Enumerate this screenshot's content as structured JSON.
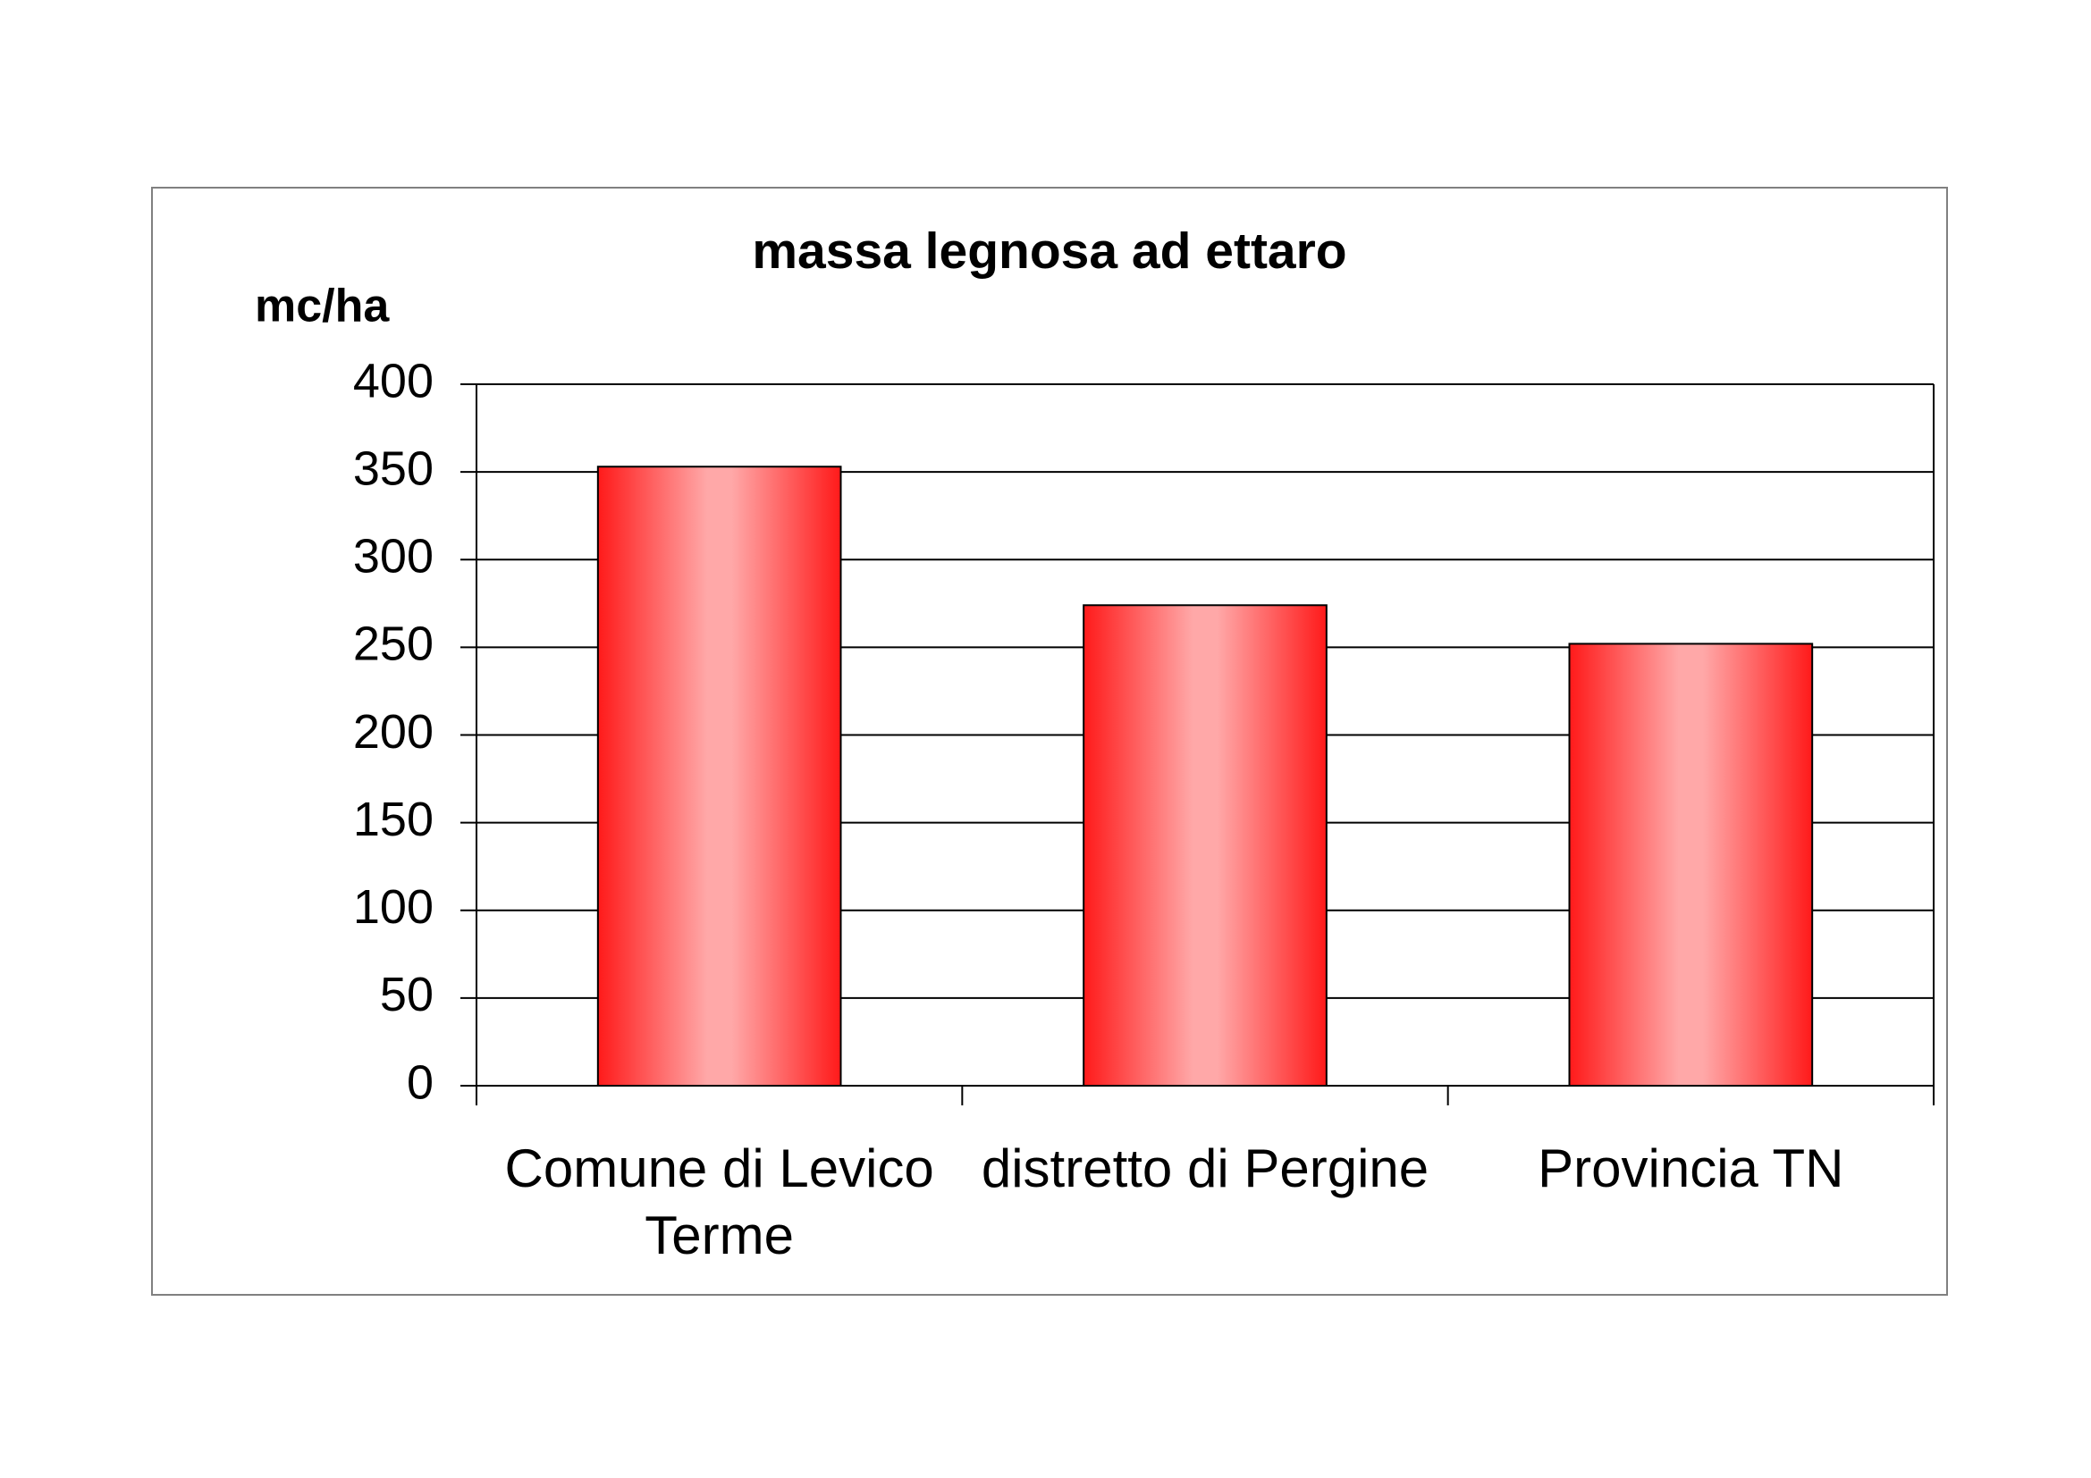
{
  "chart_data": {
    "type": "bar",
    "title": "massa legnosa ad ettaro",
    "y_label": "mc/ha",
    "categories": [
      "Comune di Levico Terme",
      "distretto di Pergine",
      "Provincia TN"
    ],
    "values": [
      353,
      274,
      252
    ],
    "color": "#ff1a1a",
    "ylim": [
      0,
      400
    ],
    "yticks": [
      0,
      50,
      100,
      150,
      200,
      250,
      300,
      350,
      400
    ],
    "grid": true
  }
}
